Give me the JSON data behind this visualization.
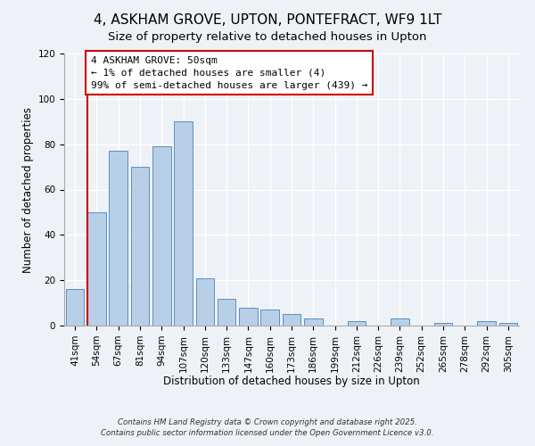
{
  "title": "4, ASKHAM GROVE, UPTON, PONTEFRACT, WF9 1LT",
  "subtitle": "Size of property relative to detached houses in Upton",
  "xlabel": "Distribution of detached houses by size in Upton",
  "ylabel": "Number of detached properties",
  "categories": [
    "41sqm",
    "54sqm",
    "67sqm",
    "81sqm",
    "94sqm",
    "107sqm",
    "120sqm",
    "133sqm",
    "147sqm",
    "160sqm",
    "173sqm",
    "186sqm",
    "199sqm",
    "212sqm",
    "226sqm",
    "239sqm",
    "252sqm",
    "265sqm",
    "278sqm",
    "292sqm",
    "305sqm"
  ],
  "values": [
    16,
    50,
    77,
    70,
    79,
    90,
    21,
    12,
    8,
    7,
    5,
    3,
    0,
    2,
    0,
    3,
    0,
    1,
    0,
    2,
    1
  ],
  "bar_color": "#b8cfe8",
  "bar_edge_color": "#5a8fc0",
  "vline_color": "#cc0000",
  "annotation_title": "4 ASKHAM GROVE: 50sqm",
  "annotation_line1": "← 1% of detached houses are smaller (4)",
  "annotation_line2": "99% of semi-detached houses are larger (439) →",
  "annotation_box_color": "#ffffff",
  "annotation_box_edge_color": "#cc0000",
  "ylim": [
    0,
    120
  ],
  "yticks": [
    0,
    20,
    40,
    60,
    80,
    100,
    120
  ],
  "footnote1": "Contains HM Land Registry data © Crown copyright and database right 2025.",
  "footnote2": "Contains public sector information licensed under the Open Government Licence v3.0.",
  "background_color": "#eef2f7",
  "title_fontsize": 11,
  "subtitle_fontsize": 9.5,
  "axis_label_fontsize": 8.5,
  "tick_fontsize": 7.5,
  "annotation_fontsize": 8
}
